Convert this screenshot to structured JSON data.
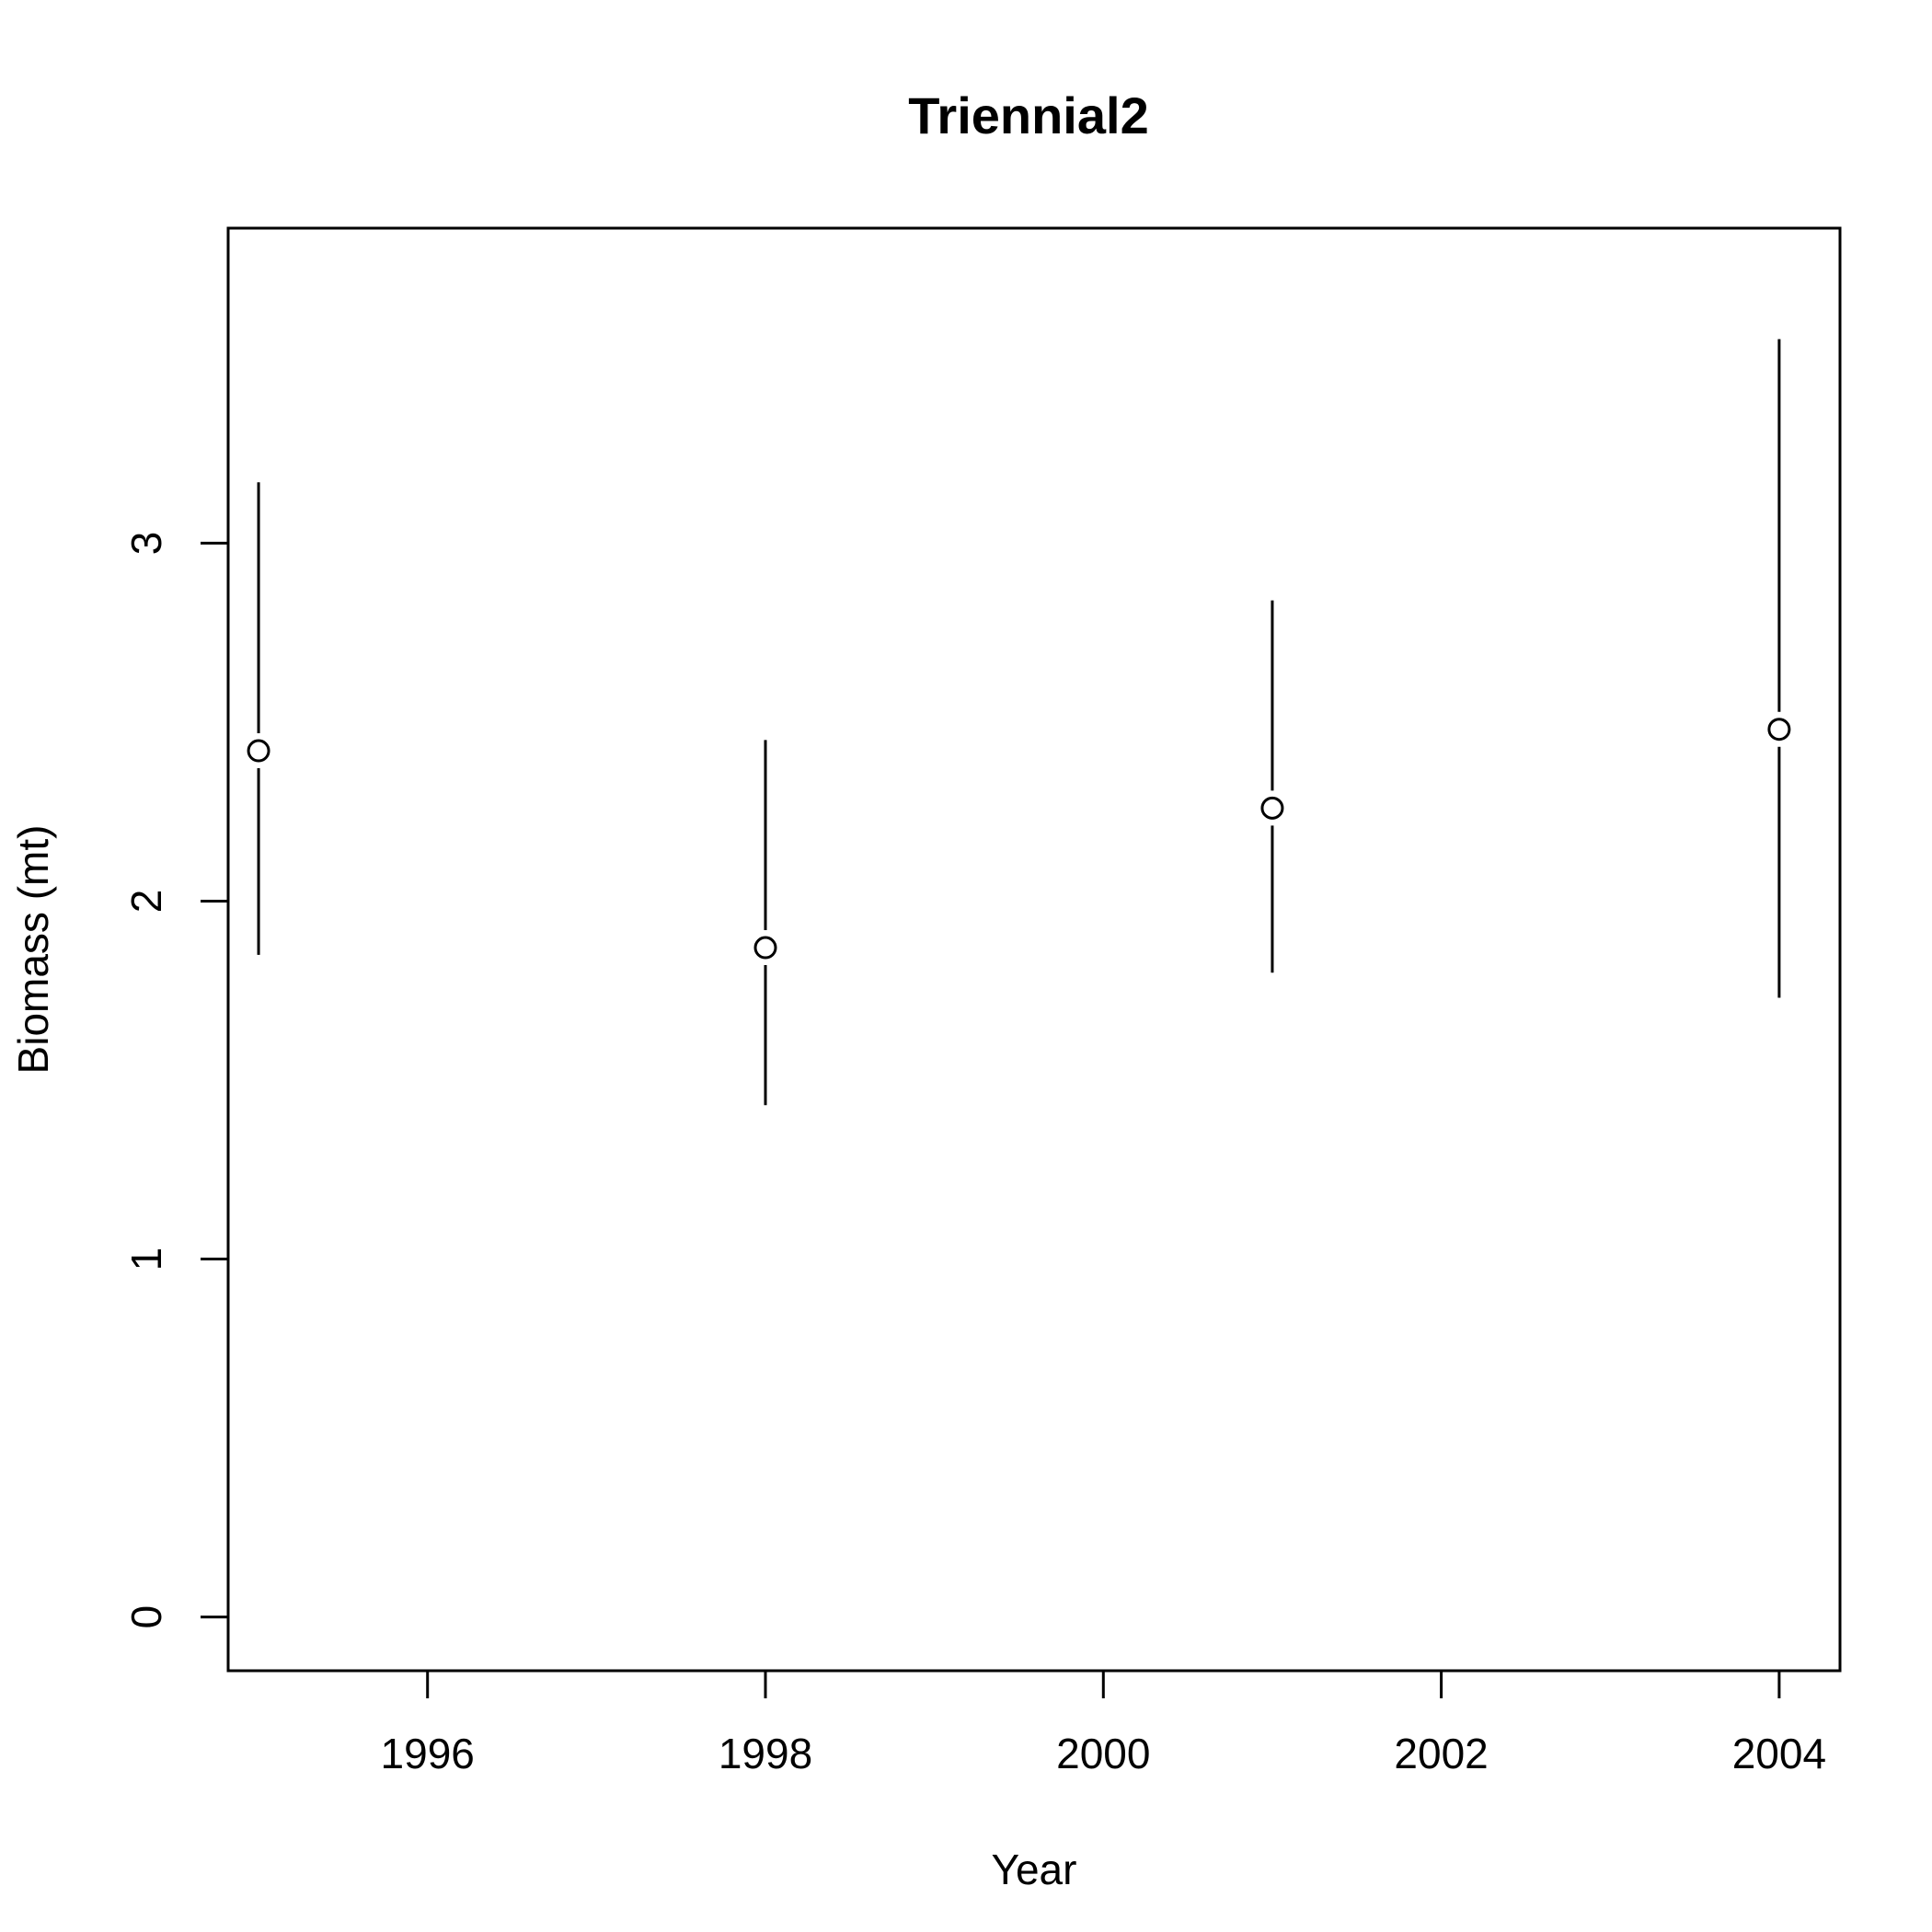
{
  "chart_data": {
    "type": "scatter",
    "title": "Triennial2",
    "xlabel": "Year",
    "ylabel": "Biomass (mt)",
    "xlim": [
      1994.82,
      2004.36
    ],
    "ylim": [
      -0.15,
      3.88
    ],
    "x_ticks": [
      "1996",
      "1998",
      "2000",
      "2002",
      "2004"
    ],
    "y_ticks": [
      "0",
      "1",
      "2",
      "3"
    ],
    "grid": false,
    "legend": "none",
    "points": [
      {
        "x": 1995,
        "y": 2.42,
        "lower": 1.85,
        "upper": 3.17
      },
      {
        "x": 1998,
        "y": 1.87,
        "lower": 1.43,
        "upper": 2.45
      },
      {
        "x": 2001,
        "y": 2.26,
        "lower": 1.8,
        "upper": 2.84
      },
      {
        "x": 2004,
        "y": 2.48,
        "lower": 1.73,
        "upper": 3.57
      }
    ]
  }
}
